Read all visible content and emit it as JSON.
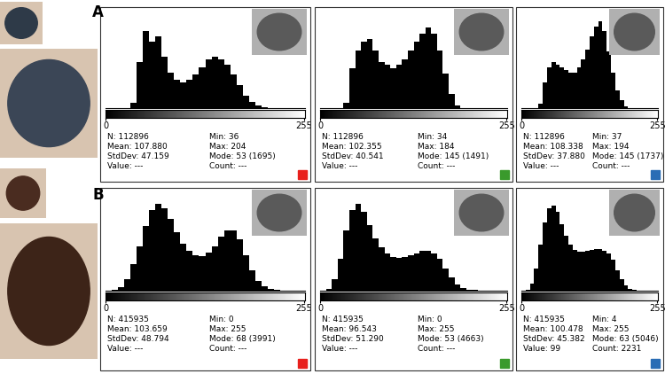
{
  "panel_labels": [
    "A",
    "B"
  ],
  "chart_data": [
    {
      "type": "histogram",
      "color": "#e8201c",
      "tick_labels": "x",
      "xlim": [
        0,
        256
      ],
      "xticks": [
        0,
        255
      ],
      "ylim": [
        0,
        1800
      ],
      "bins": [
        0,
        8,
        16,
        24,
        32,
        40,
        48,
        56,
        64,
        72,
        80,
        88,
        96,
        104,
        112,
        120,
        128,
        136,
        144,
        152,
        160,
        168,
        176,
        184,
        192,
        200,
        208,
        216,
        224,
        232,
        240,
        248,
        256
      ],
      "series": [
        {
          "color": "#000000",
          "values": [
            0,
            0,
            0,
            0,
            100,
            900,
            1500,
            1300,
            1400,
            1000,
            700,
            550,
            500,
            550,
            650,
            800,
            950,
            1000,
            950,
            850,
            650,
            450,
            250,
            120,
            50,
            10,
            0,
            0,
            0,
            0,
            0,
            0
          ]
        }
      ],
      "annotations": [
        "N: 112896",
        "Mean: 107.880",
        "StdDev: 47.159",
        "Value: ---",
        "Min: 36",
        "Max: 204",
        "Mode: 53 (1695)",
        "Count: ---"
      ]
    },
    {
      "type": "histogram",
      "color": "#3a9a2c",
      "tick_labels": "x",
      "xlim": [
        0,
        256
      ],
      "xticks": [
        0,
        255
      ],
      "ylim": [
        0,
        1600
      ],
      "bins": [
        0,
        8,
        16,
        24,
        32,
        40,
        48,
        56,
        64,
        72,
        80,
        88,
        96,
        104,
        112,
        120,
        128,
        136,
        144,
        152,
        160,
        168,
        176,
        184,
        192,
        200,
        208,
        216,
        224,
        232,
        240,
        248,
        256
      ],
      "series": [
        {
          "color": "#000000",
          "values": [
            0,
            0,
            0,
            0,
            100,
            700,
            1000,
            1150,
            1200,
            1000,
            800,
            750,
            700,
            750,
            850,
            1000,
            1150,
            1300,
            1400,
            1300,
            1000,
            600,
            250,
            50,
            0,
            0,
            0,
            0,
            0,
            0,
            0,
            0
          ]
        }
      ],
      "annotations": [
        "N: 112896",
        "Mean: 102.355",
        "StdDev: 40.541",
        "Value: ---",
        "Min: 34",
        "Max: 184",
        "Mode: 145 (1491)",
        "Count: ---"
      ]
    },
    {
      "type": "histogram",
      "color": "#2a6db5",
      "tick_labels": "x",
      "xlim": [
        0,
        256
      ],
      "xticks": [
        0,
        255
      ],
      "ylim": [
        0,
        1800
      ],
      "bins": [
        0,
        8,
        16,
        24,
        32,
        40,
        48,
        56,
        64,
        72,
        80,
        88,
        96,
        104,
        112,
        120,
        128,
        136,
        144,
        152,
        160,
        168,
        176,
        184,
        192,
        200,
        208,
        216,
        224,
        232,
        240,
        248,
        256
      ],
      "series": [
        {
          "color": "#000000",
          "values": [
            0,
            0,
            0,
            0,
            80,
            500,
            800,
            900,
            850,
            800,
            750,
            700,
            700,
            800,
            950,
            1150,
            1400,
            1600,
            1700,
            1500,
            1100,
            700,
            350,
            150,
            30,
            0,
            0,
            0,
            0,
            0,
            0,
            0
          ]
        }
      ],
      "annotations": [
        "N: 112896",
        "Mean: 108.338",
        "StdDev: 37.880",
        "Value: ---",
        "Min: 37",
        "Max: 194",
        "Mode: 145 (1737)",
        "Count: ---"
      ]
    },
    {
      "type": "histogram",
      "color": "#e8201c",
      "tick_labels": "x",
      "xlim": [
        0,
        256
      ],
      "xticks": [
        0,
        255
      ],
      "ylim": [
        0,
        4200
      ],
      "bins": [
        0,
        8,
        16,
        24,
        32,
        40,
        48,
        56,
        64,
        72,
        80,
        88,
        96,
        104,
        112,
        120,
        128,
        136,
        144,
        152,
        160,
        168,
        176,
        184,
        192,
        200,
        208,
        216,
        224,
        232,
        240,
        248,
        256
      ],
      "series": [
        {
          "color": "#000000",
          "values": [
            5,
            20,
            150,
            500,
            1200,
            2000,
            2900,
            3600,
            3900,
            3700,
            3200,
            2600,
            2100,
            1800,
            1600,
            1550,
            1700,
            2000,
            2400,
            2700,
            2700,
            2300,
            1600,
            900,
            450,
            200,
            80,
            30,
            10,
            5,
            2,
            1
          ]
        }
      ],
      "annotations": [
        "N: 415935",
        "Mean: 103.659",
        "StdDev: 48.794",
        "Value: ---",
        "Min: 0",
        "Max: 255",
        "Mode: 68 (3991)",
        "Count: ---"
      ]
    },
    {
      "type": "histogram",
      "color": "#3a9a2c",
      "tick_labels": "x",
      "xlim": [
        0,
        256
      ],
      "xticks": [
        0,
        255
      ],
      "ylim": [
        0,
        5000
      ],
      "bins": [
        0,
        8,
        16,
        24,
        32,
        40,
        48,
        56,
        64,
        72,
        80,
        88,
        96,
        104,
        112,
        120,
        128,
        136,
        144,
        152,
        160,
        168,
        176,
        184,
        192,
        200,
        208,
        216,
        224,
        232,
        240,
        248,
        256
      ],
      "series": [
        {
          "color": "#000000",
          "values": [
            10,
            100,
            600,
            1700,
            3200,
            4300,
            4600,
            4200,
            3500,
            2800,
            2300,
            2000,
            1800,
            1750,
            1800,
            1900,
            2000,
            2100,
            2100,
            2000,
            1700,
            1200,
            700,
            350,
            150,
            60,
            25,
            10,
            5,
            2,
            1,
            1
          ]
        }
      ],
      "annotations": [
        "N: 415935",
        "Mean: 96.543",
        "StdDev: 51.290",
        "Value: ---",
        "Min: 0",
        "Max: 255",
        "Mode: 53 (4663)",
        "Count: ---"
      ]
    },
    {
      "type": "histogram",
      "color": "#2a6db5",
      "tick_labels": "x",
      "xlim": [
        0,
        256
      ],
      "xticks": [
        0,
        255
      ],
      "ylim": [
        0,
        5500
      ],
      "bins": [
        0,
        8,
        16,
        24,
        32,
        40,
        48,
        56,
        64,
        72,
        80,
        88,
        96,
        104,
        112,
        120,
        128,
        136,
        144,
        152,
        160,
        168,
        176,
        184,
        192,
        200,
        208,
        216,
        224,
        232,
        240,
        248,
        256
      ],
      "series": [
        {
          "color": "#000000",
          "values": [
            2,
            50,
            400,
            1300,
            2700,
            4000,
            4800,
            5000,
            4600,
            3900,
            3200,
            2700,
            2400,
            2300,
            2300,
            2350,
            2400,
            2450,
            2450,
            2350,
            2200,
            1800,
            1200,
            650,
            300,
            120,
            50,
            20,
            8,
            3,
            1,
            1
          ]
        }
      ],
      "annotations": [
        "N: 415935",
        "Mean: 100.478",
        "StdDev: 45.382",
        "Value: 99",
        "Min: 4",
        "Max: 255",
        "Mode: 63 (5046)",
        "Count: 2231"
      ]
    }
  ]
}
